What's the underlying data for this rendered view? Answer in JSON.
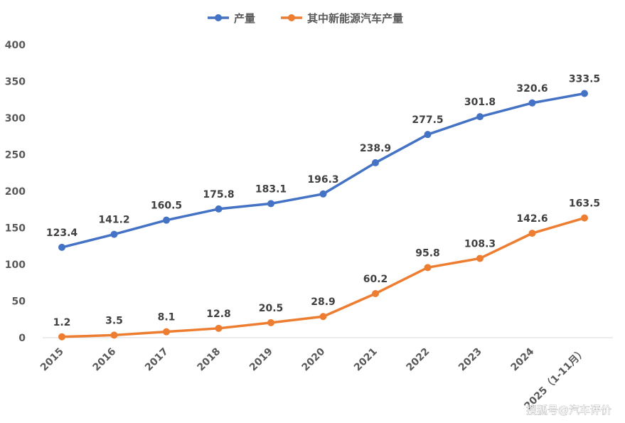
{
  "chart_data": {
    "type": "line",
    "title": "",
    "xlabel": "",
    "ylabel": "",
    "ylim": [
      0,
      400
    ],
    "yticks": [
      0,
      50,
      100,
      150,
      200,
      250,
      300,
      350,
      400
    ],
    "categories": [
      "2015",
      "2016",
      "2017",
      "2018",
      "2019",
      "2020",
      "2021",
      "2022",
      "2023",
      "2024",
      "2025（1-11月）"
    ],
    "series": [
      {
        "name": "产量",
        "color": "#4472C4",
        "values": [
          123.4,
          141.2,
          160.5,
          175.8,
          183.1,
          196.3,
          238.9,
          277.5,
          301.8,
          320.6,
          333.5
        ],
        "labels": [
          "123.4",
          "141.2",
          "160.5",
          "175.8",
          "183.1",
          "196.3",
          "238.9",
          "277.5",
          "301.8",
          "320.6",
          "333.5"
        ]
      },
      {
        "name": "其中新能源汽车产量",
        "color": "#ED7D31",
        "values": [
          1.2,
          3.5,
          8.1,
          12.8,
          20.5,
          28.9,
          60.2,
          95.8,
          108.3,
          142.6,
          163.5
        ],
        "labels": [
          "1.2",
          "3.5",
          "8.1",
          "12.8",
          "20.5",
          "28.9",
          "60.2",
          "95.8",
          "108.3",
          "142.6",
          "163.5"
        ]
      }
    ],
    "legend_position": "top-center",
    "grid": false
  },
  "watermark": "搜狐号@汽车评价"
}
